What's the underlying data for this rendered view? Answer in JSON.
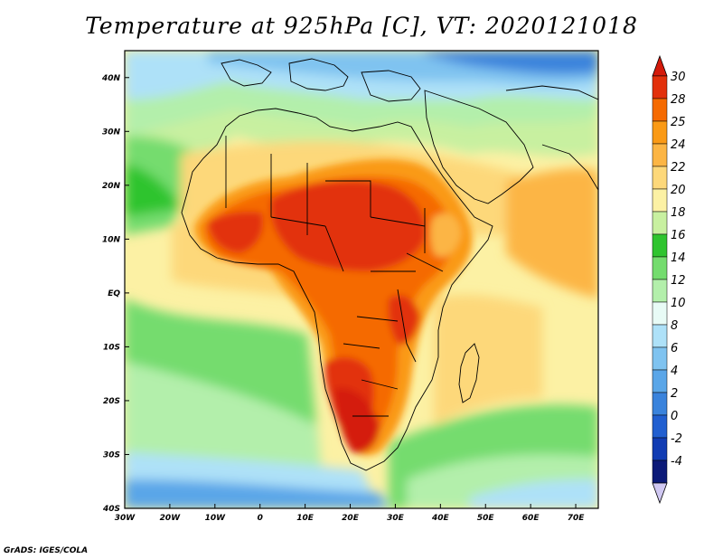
{
  "title": "Temperature at 925hPa [C], VT: 2020121018",
  "credit": "GrADS: IGES/COLA",
  "map": {
    "lon_range": [
      -30,
      75
    ],
    "lat_range": [
      -40,
      45
    ],
    "x_ticks": [
      {
        "lon": -30,
        "label": "30W"
      },
      {
        "lon": -20,
        "label": "20W"
      },
      {
        "lon": -10,
        "label": "10W"
      },
      {
        "lon": 0,
        "label": "0"
      },
      {
        "lon": 10,
        "label": "10E"
      },
      {
        "lon": 20,
        "label": "20E"
      },
      {
        "lon": 30,
        "label": "30E"
      },
      {
        "lon": 40,
        "label": "40E"
      },
      {
        "lon": 50,
        "label": "50E"
      },
      {
        "lon": 60,
        "label": "60E"
      },
      {
        "lon": 70,
        "label": "70E"
      }
    ],
    "y_ticks": [
      {
        "lat": 40,
        "label": "40N"
      },
      {
        "lat": 30,
        "label": "30N"
      },
      {
        "lat": 20,
        "label": "20N"
      },
      {
        "lat": 10,
        "label": "10N"
      },
      {
        "lat": 0,
        "label": "EQ"
      },
      {
        "lat": -10,
        "label": "10S"
      },
      {
        "lat": -20,
        "label": "20S"
      },
      {
        "lat": -30,
        "label": "30S"
      },
      {
        "lat": -40,
        "label": "40S"
      }
    ]
  },
  "colorbar": {
    "labels": [
      "30",
      "28",
      "25",
      "24",
      "22",
      "20",
      "18",
      "16",
      "14",
      "12",
      "10",
      "8",
      "6",
      "4",
      "2",
      "0",
      "-2",
      "-4"
    ],
    "colors": [
      "#e2300b",
      "#f56a00",
      "#fa9a16",
      "#fcb544",
      "#fdd87a",
      "#fcf1a4",
      "#c8f0a0",
      "#2fc42f",
      "#74dc6e",
      "#b3efab",
      "#e8fbf6",
      "#aee1f8",
      "#7fc3f0",
      "#5aa6e8",
      "#3a83dc",
      "#215fd0",
      "#113cb3",
      "#0c1a78"
    ],
    "top_color": "#d41a0a",
    "bottom_color": "#d0c8f2"
  }
}
